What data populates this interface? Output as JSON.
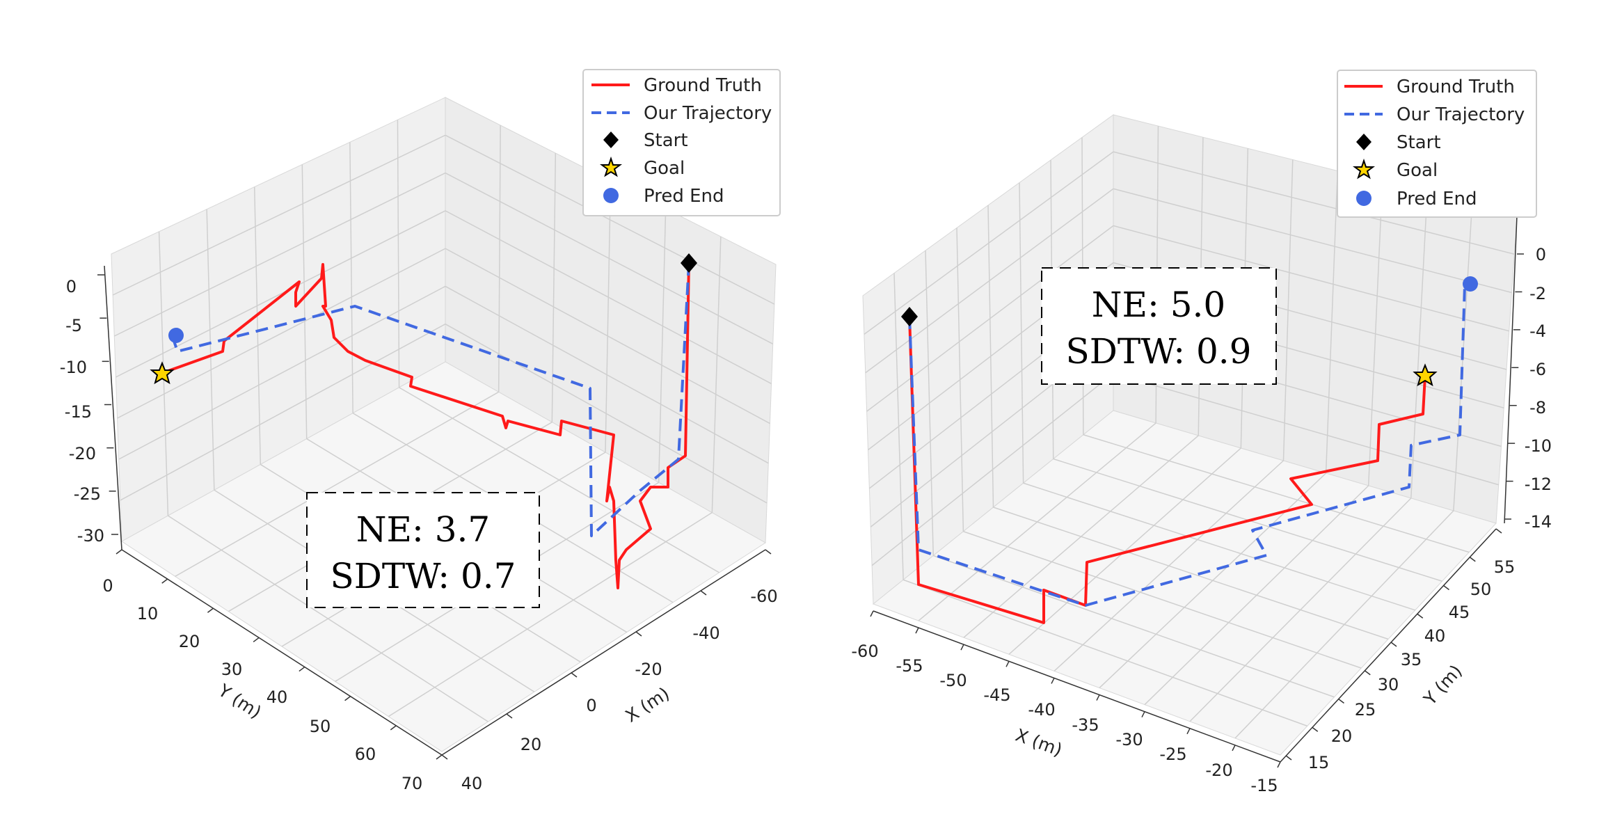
{
  "colors": {
    "ground_truth": "#ff1a1a",
    "our_trajectory": "#4169e1",
    "start": "#000000",
    "goal": "#ffd500",
    "pred_end": "#4169e1",
    "pane": "#f2f2f2",
    "grid": "#c8c8c8"
  },
  "legend": [
    {
      "label": "Ground Truth",
      "style": "solid-line",
      "color": "#ff1a1a"
    },
    {
      "label": "Our Trajectory",
      "style": "dashed-line",
      "color": "#4169e1"
    },
    {
      "label": "Start",
      "style": "diamond",
      "color": "#000000"
    },
    {
      "label": "Goal",
      "style": "star",
      "color": "#ffd500"
    },
    {
      "label": "Pred End",
      "style": "circle",
      "color": "#4169e1"
    }
  ],
  "chart_data": [
    {
      "type": "line3d",
      "legend_position": "top-right",
      "grid": true,
      "xlabel": "X (m)",
      "ylabel": "Y (m)",
      "zlabel": "",
      "xlim": [
        -65,
        40
      ],
      "ylim": [
        0,
        70
      ],
      "zlim": [
        -32,
        2
      ],
      "x_ticks": [
        "-60",
        "-40",
        "-20",
        "0",
        "20",
        "40"
      ],
      "y_ticks": [
        "0",
        "10",
        "20",
        "30",
        "40",
        "50",
        "60",
        "70"
      ],
      "z_ticks": [
        "0",
        "-5",
        "-10",
        "-15",
        "-20",
        "-25",
        "-30"
      ],
      "metrics": {
        "ne": "NE: 3.7",
        "sdtw": "SDTW: 0.7"
      },
      "series": [
        {
          "name": "Ground Truth",
          "style": "solid",
          "points": [
            [
              -60,
              68,
              0
            ],
            [
              -58,
              62,
              -20
            ],
            [
              -53,
              56,
              -22
            ],
            [
              -50,
              52,
              -25
            ],
            [
              -40,
              48,
              -21
            ],
            [
              -33,
              45,
              -20
            ],
            [
              -32,
              50,
              -18
            ],
            [
              -35,
              55,
              -18
            ],
            [
              -38,
              60,
              -16
            ],
            [
              -35,
              58,
              -16
            ],
            [
              -30,
              50,
              -15
            ],
            [
              -25,
              43,
              -14
            ],
            [
              -20,
              38,
              -13
            ],
            [
              -15,
              33,
              -10
            ],
            [
              -10,
              28,
              -5
            ],
            [
              -5,
              20,
              -6
            ],
            [
              0,
              16,
              -5
            ],
            [
              5,
              12,
              -3
            ],
            [
              10,
              8,
              -4
            ],
            [
              13,
              5,
              -6
            ],
            [
              14,
              4,
              -8
            ],
            [
              17,
              3,
              -8
            ],
            [
              20,
              2,
              -10
            ],
            [
              22,
              2,
              -11
            ]
          ]
        },
        {
          "name": "Our Trajectory",
          "style": "dashed",
          "points": [
            [
              -60,
              68,
              0
            ],
            [
              -58,
              62,
              -20
            ],
            [
              -53,
              58,
              -20
            ],
            [
              -48,
              55,
              -22
            ],
            [
              -40,
              55,
              -25
            ],
            [
              -40,
              45,
              -25
            ],
            [
              -35,
              45,
              -10
            ],
            [
              -28,
              38,
              -10
            ],
            [
              -20,
              30,
              -9
            ],
            [
              -10,
              20,
              -6
            ],
            [
              0,
              14,
              -5
            ],
            [
              5,
              10,
              -4
            ],
            [
              10,
              6,
              -4
            ],
            [
              13,
              3,
              -3
            ],
            [
              15,
              2,
              -5
            ],
            [
              16,
              2,
              -7
            ],
            [
              18,
              2,
              -8
            ]
          ]
        },
        {
          "name": "Start",
          "marker": "diamond",
          "points": [
            [
              -60,
              68,
              0
            ]
          ]
        },
        {
          "name": "Goal",
          "marker": "star",
          "points": [
            [
              22,
              2,
              -11
            ]
          ]
        },
        {
          "name": "Pred End",
          "marker": "circle",
          "points": [
            [
              18,
              2,
              -8
            ]
          ]
        }
      ]
    },
    {
      "type": "line3d",
      "legend_position": "top-right",
      "grid": true,
      "xlabel": "X (m)",
      "ylabel": "Y (m)",
      "zlabel": "",
      "xlim": [
        -60,
        -15
      ],
      "ylim": [
        12,
        57
      ],
      "zlim": [
        -15,
        1
      ],
      "x_ticks": [
        "-60",
        "-55",
        "-50",
        "-45",
        "-40",
        "-35",
        "-30",
        "-25",
        "-20",
        "-15"
      ],
      "y_ticks": [
        "15",
        "20",
        "25",
        "30",
        "35",
        "40",
        "45",
        "50",
        "55"
      ],
      "z_ticks": [
        "0",
        "-2",
        "-4",
        "-6",
        "-8",
        "-10",
        "-12",
        "-14"
      ],
      "metrics": {
        "ne": "NE: 5.0",
        "sdtw": "SDTW: 0.9"
      },
      "series": [
        {
          "name": "Ground Truth",
          "style": "solid",
          "points": [
            [
              -58,
              55,
              -2
            ],
            [
              -57,
              56,
              -14
            ],
            [
              -56,
              52,
              -14
            ],
            [
              -45,
              51,
              -14
            ],
            [
              -45,
              50,
              -13
            ],
            [
              -40,
              45,
              -13
            ],
            [
              -40,
              45,
              -11
            ],
            [
              -32,
              38,
              -10
            ],
            [
              -28,
              34,
              -9
            ],
            [
              -27,
              34,
              -8
            ],
            [
              -30,
              36,
              -8
            ],
            [
              -26,
              32,
              -7
            ],
            [
              -22,
              28,
              -7
            ],
            [
              -20,
              25,
              -6
            ],
            [
              -19,
              24,
              -5
            ],
            [
              -19,
              24,
              -3
            ]
          ]
        },
        {
          "name": "Our Trajectory",
          "style": "dashed",
          "points": [
            [
              -58,
              55,
              -2
            ],
            [
              -57,
              56,
              -14
            ],
            [
              -55,
              54,
              -14
            ],
            [
              -50,
              50,
              -14
            ],
            [
              -45,
              48,
              -14
            ],
            [
              -40,
              45,
              -14
            ],
            [
              -35,
              38,
              -14
            ],
            [
              -33,
              35,
              -13
            ],
            [
              -34,
              37,
              -13
            ],
            [
              -30,
              32,
              -13
            ],
            [
              -25,
              28,
              -13
            ],
            [
              -20,
              23,
              -12
            ],
            [
              -18,
              20,
              -12
            ],
            [
              -17,
              18,
              -10
            ],
            [
              -16,
              17,
              -9
            ],
            [
              -15,
              16,
              -4
            ],
            [
              -15,
              16,
              -2
            ]
          ]
        },
        {
          "name": "Start",
          "marker": "diamond",
          "points": [
            [
              -58,
              55,
              -2
            ]
          ]
        },
        {
          "name": "Goal",
          "marker": "star",
          "points": [
            [
              -19,
              24,
              -3
            ]
          ]
        },
        {
          "name": "Pred End",
          "marker": "circle",
          "points": [
            [
              -15,
              16,
              -2
            ]
          ]
        }
      ]
    }
  ]
}
